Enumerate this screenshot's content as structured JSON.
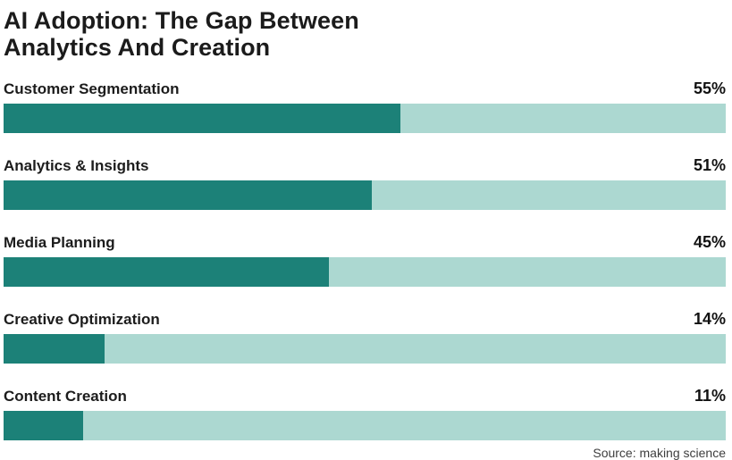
{
  "chart_data": {
    "type": "bar",
    "orientation": "horizontal",
    "title": "AI Adoption: The Gap Between Analytics And Creation",
    "title_lines": [
      "AI Adoption: The Gap Between",
      "Analytics And Creation"
    ],
    "categories": [
      "Customer Segmentation",
      "Analytics & Insights",
      "Media Planning",
      "Creative Optimization",
      "Content Creation"
    ],
    "values": [
      55,
      51,
      45,
      14,
      11
    ],
    "value_labels": [
      "55%",
      "51%",
      "45%",
      "14%",
      "11%"
    ],
    "xlim": [
      0,
      100
    ],
    "grid": false,
    "legend": "none",
    "source": "Source: making science",
    "colors": {
      "fill": "#1C8178",
      "track": "#ACD8D1",
      "title_text": "#1B1B1B",
      "label_text": "#1C1C1C",
      "source_text": "#3D3D3D"
    }
  }
}
